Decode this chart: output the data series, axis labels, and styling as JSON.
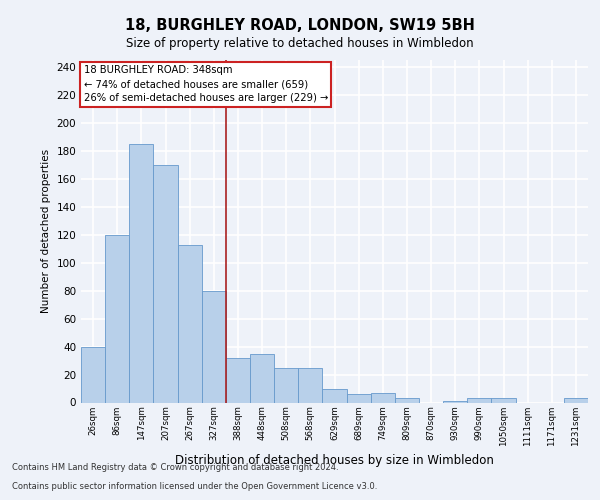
{
  "title_line1": "18, BURGHLEY ROAD, LONDON, SW19 5BH",
  "title_line2": "Size of property relative to detached houses in Wimbledon",
  "xlabel": "Distribution of detached houses by size in Wimbledon",
  "ylabel": "Number of detached properties",
  "bar_labels": [
    "26sqm",
    "86sqm",
    "147sqm",
    "207sqm",
    "267sqm",
    "327sqm",
    "388sqm",
    "448sqm",
    "508sqm",
    "568sqm",
    "629sqm",
    "689sqm",
    "749sqm",
    "809sqm",
    "870sqm",
    "930sqm",
    "990sqm",
    "1050sqm",
    "1111sqm",
    "1171sqm",
    "1231sqm"
  ],
  "bar_values": [
    40,
    120,
    185,
    170,
    113,
    80,
    32,
    35,
    25,
    25,
    10,
    6,
    7,
    3,
    0,
    1,
    3,
    3,
    0,
    0,
    3
  ],
  "bar_color": "#b8d0ea",
  "bar_edge_color": "#6699cc",
  "property_label": "18 BURGHLEY ROAD: 348sqm",
  "annotation_line2": "← 74% of detached houses are smaller (659)",
  "annotation_line3": "26% of semi-detached houses are larger (229) →",
  "vline_color": "#aa2222",
  "annotation_box_edgecolor": "#cc2222",
  "ylim": [
    0,
    245
  ],
  "yticks": [
    0,
    20,
    40,
    60,
    80,
    100,
    120,
    140,
    160,
    180,
    200,
    220,
    240
  ],
  "footer_line1": "Contains HM Land Registry data © Crown copyright and database right 2024.",
  "footer_line2": "Contains public sector information licensed under the Open Government Licence v3.0.",
  "bg_color": "#eef2f9",
  "grid_color": "#ffffff"
}
